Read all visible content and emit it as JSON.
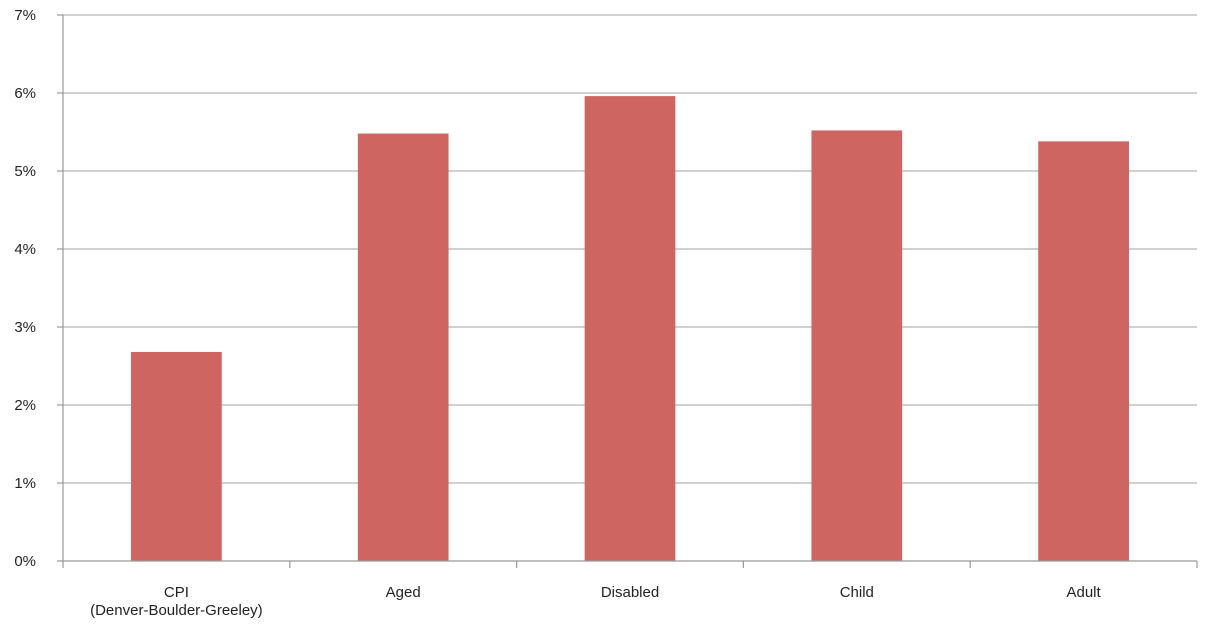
{
  "chart_data": {
    "type": "bar",
    "title": "",
    "xlabel": "",
    "ylabel": "",
    "categories": [
      [
        "CPI",
        "(Denver-Boulder-Greeley)"
      ],
      [
        "Aged"
      ],
      [
        "Disabled"
      ],
      [
        "Child"
      ],
      [
        "Adult"
      ]
    ],
    "values": [
      2.68,
      5.48,
      5.96,
      5.52,
      5.38
    ],
    "ylim": [
      0,
      7
    ],
    "yticks": [
      "0%",
      "1%",
      "2%",
      "3%",
      "4%",
      "5%",
      "6%",
      "7%"
    ],
    "grid": true,
    "legend": "none",
    "bar_color": "#cf6560",
    "grid_color": "#b3b3b3",
    "axis_color": "#999999"
  }
}
